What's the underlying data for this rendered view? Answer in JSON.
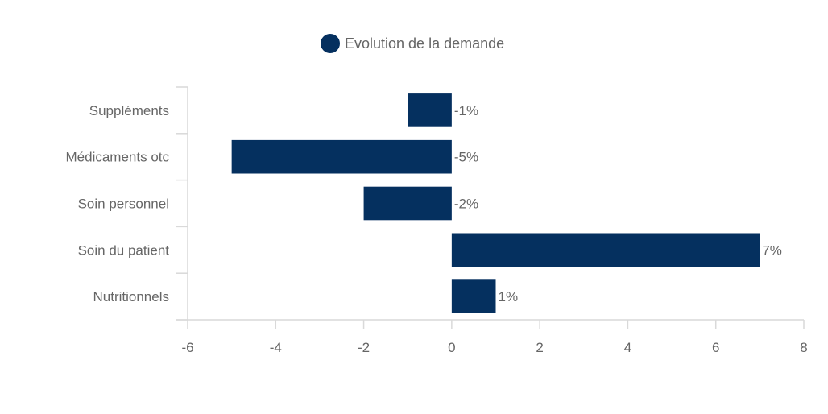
{
  "colors": {
    "bar": "#05305f",
    "axis": "#d9d9d9",
    "text": "#666666"
  },
  "chart_data": {
    "type": "bar",
    "orientation": "horizontal",
    "categories": [
      "Suppléments",
      "Médicaments otc",
      "Soin personnel",
      "Soin du patient",
      "Nutritionnels"
    ],
    "series": [
      {
        "name": "Evolution de la demande",
        "values": [
          -1,
          -5,
          -2,
          7,
          1
        ],
        "data_labels": [
          "-1%",
          "-5%",
          "-2%",
          "7%",
          "1%"
        ]
      }
    ],
    "xlim": [
      -6,
      8
    ],
    "xticks": [
      -6,
      -4,
      -2,
      0,
      2,
      4,
      6,
      8
    ],
    "legend_position": "top",
    "grid": false,
    "title": "",
    "xlabel": "",
    "ylabel": ""
  }
}
